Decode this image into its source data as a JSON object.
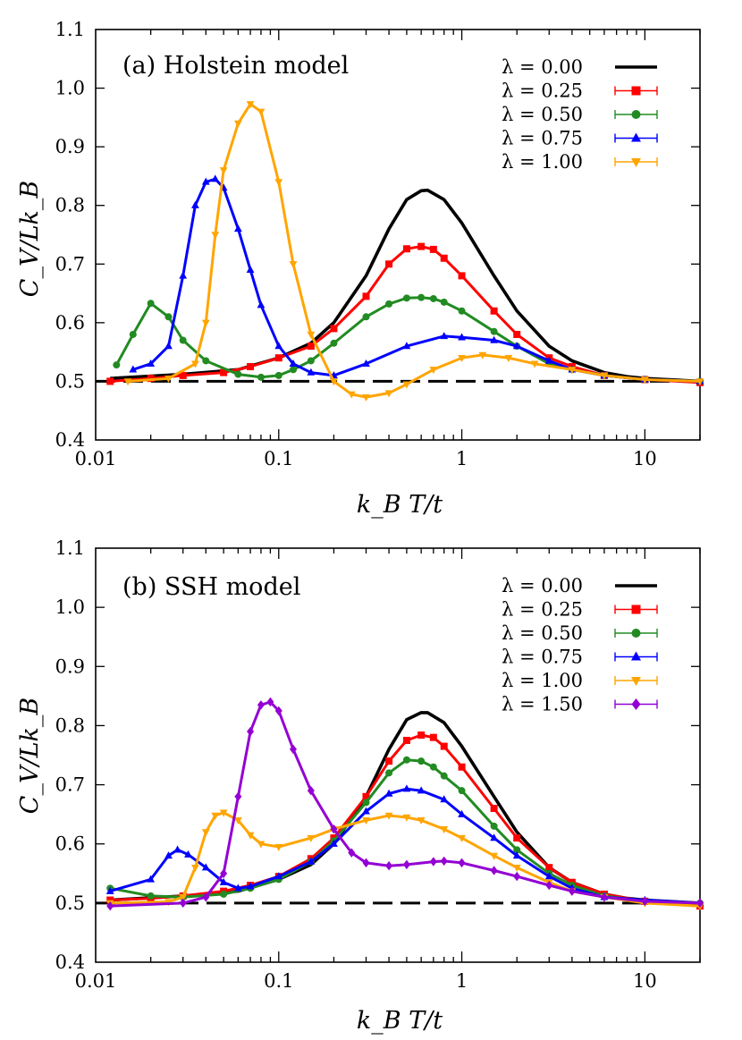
{
  "chart_data": [
    {
      "type": "line",
      "title": "(a) Holstein model",
      "xlabel": "k_B T/t",
      "ylabel": "C_V/Lk_B",
      "xscale": "log",
      "xlim": [
        0.01,
        20
      ],
      "ylim": [
        0.4,
        1.1
      ],
      "x_ticks": [
        0.01,
        0.1,
        1,
        10
      ],
      "x_tick_labels": [
        "0.01",
        "0.1",
        "1",
        "10"
      ],
      "y_ticks": [
        0.4,
        0.5,
        0.6,
        0.7,
        0.8,
        0.9,
        1.0,
        1.1
      ],
      "y_tick_labels": [
        "0.4",
        "0.5",
        "0.6",
        "0.7",
        "0.8",
        "0.9",
        "1.0",
        "1.1"
      ],
      "reference_line": {
        "y": 0.5,
        "style": "dashed",
        "color": "#000000"
      },
      "legend_position": "top-right",
      "series": [
        {
          "name": "λ = 0.00",
          "color": "#000000",
          "marker": "none",
          "x": [
            0.012,
            0.03,
            0.06,
            0.1,
            0.15,
            0.2,
            0.3,
            0.4,
            0.5,
            0.6,
            0.65,
            0.8,
            1.0,
            1.5,
            2,
            3,
            4,
            6,
            8,
            10,
            20
          ],
          "y": [
            0.505,
            0.512,
            0.52,
            0.54,
            0.565,
            0.6,
            0.68,
            0.76,
            0.81,
            0.825,
            0.826,
            0.81,
            0.77,
            0.68,
            0.62,
            0.56,
            0.535,
            0.515,
            0.508,
            0.505,
            0.5
          ]
        },
        {
          "name": "λ = 0.25",
          "color": "#ff0000",
          "marker": "square",
          "x": [
            0.012,
            0.02,
            0.03,
            0.05,
            0.07,
            0.1,
            0.15,
            0.2,
            0.3,
            0.4,
            0.5,
            0.6,
            0.7,
            0.8,
            1.0,
            1.5,
            2,
            3,
            4,
            6,
            10,
            20
          ],
          "y": [
            0.5,
            0.505,
            0.51,
            0.515,
            0.525,
            0.54,
            0.56,
            0.59,
            0.645,
            0.7,
            0.726,
            0.73,
            0.725,
            0.71,
            0.68,
            0.62,
            0.58,
            0.54,
            0.525,
            0.51,
            0.503,
            0.498
          ]
        },
        {
          "name": "λ = 0.50",
          "color": "#228b22",
          "marker": "circle",
          "x": [
            0.013,
            0.016,
            0.02,
            0.025,
            0.03,
            0.04,
            0.06,
            0.08,
            0.1,
            0.12,
            0.15,
            0.2,
            0.3,
            0.4,
            0.5,
            0.6,
            0.7,
            0.8,
            1.0,
            1.5,
            2,
            3,
            4,
            6,
            10,
            20
          ],
          "y": [
            0.528,
            0.58,
            0.633,
            0.61,
            0.57,
            0.535,
            0.512,
            0.507,
            0.51,
            0.52,
            0.535,
            0.565,
            0.61,
            0.632,
            0.642,
            0.643,
            0.641,
            0.635,
            0.62,
            0.585,
            0.56,
            0.53,
            0.52,
            0.51,
            0.503,
            0.5
          ]
        },
        {
          "name": "λ = 0.75",
          "color": "#0000ff",
          "marker": "triangle-up",
          "x": [
            0.016,
            0.02,
            0.025,
            0.03,
            0.035,
            0.04,
            0.045,
            0.05,
            0.06,
            0.07,
            0.08,
            0.1,
            0.12,
            0.15,
            0.2,
            0.3,
            0.5,
            0.8,
            1.0,
            1.5,
            2,
            3,
            4,
            6,
            10,
            20
          ],
          "y": [
            0.52,
            0.53,
            0.56,
            0.68,
            0.8,
            0.84,
            0.845,
            0.83,
            0.76,
            0.69,
            0.63,
            0.56,
            0.53,
            0.515,
            0.51,
            0.53,
            0.56,
            0.577,
            0.575,
            0.57,
            0.56,
            0.535,
            0.52,
            0.51,
            0.503,
            0.5
          ]
        },
        {
          "name": "λ = 1.00",
          "color": "#ffa500",
          "marker": "triangle-down",
          "x": [
            0.015,
            0.025,
            0.035,
            0.04,
            0.045,
            0.05,
            0.06,
            0.07,
            0.08,
            0.1,
            0.12,
            0.15,
            0.2,
            0.25,
            0.3,
            0.4,
            0.5,
            0.7,
            1.0,
            1.3,
            1.8,
            2.5,
            4,
            6,
            10,
            20
          ],
          "y": [
            0.5,
            0.505,
            0.53,
            0.6,
            0.75,
            0.86,
            0.94,
            0.973,
            0.96,
            0.84,
            0.7,
            0.58,
            0.5,
            0.478,
            0.473,
            0.48,
            0.495,
            0.52,
            0.54,
            0.545,
            0.54,
            0.53,
            0.52,
            0.51,
            0.503,
            0.5
          ]
        }
      ]
    },
    {
      "type": "line",
      "title": "(b) SSH model",
      "xlabel": "k_B T/t",
      "ylabel": "C_V/Lk_B",
      "xscale": "log",
      "xlim": [
        0.01,
        20
      ],
      "ylim": [
        0.4,
        1.1
      ],
      "x_ticks": [
        0.01,
        0.1,
        1,
        10
      ],
      "x_tick_labels": [
        "0.01",
        "0.1",
        "1",
        "10"
      ],
      "y_ticks": [
        0.4,
        0.5,
        0.6,
        0.7,
        0.8,
        0.9,
        1.0,
        1.1
      ],
      "y_tick_labels": [
        "0.4",
        "0.5",
        "0.6",
        "0.7",
        "0.8",
        "0.9",
        "1.0",
        "1.1"
      ],
      "reference_line": {
        "y": 0.5,
        "style": "dashed",
        "color": "#000000"
      },
      "legend_position": "top-right",
      "series": [
        {
          "name": "λ = 0.00",
          "color": "#000000",
          "marker": "none",
          "x": [
            0.012,
            0.03,
            0.06,
            0.1,
            0.15,
            0.2,
            0.3,
            0.4,
            0.5,
            0.6,
            0.65,
            0.8,
            1.0,
            1.5,
            2,
            3,
            4,
            6,
            8,
            10,
            20
          ],
          "y": [
            0.505,
            0.512,
            0.52,
            0.54,
            0.565,
            0.6,
            0.68,
            0.76,
            0.81,
            0.822,
            0.822,
            0.805,
            0.765,
            0.68,
            0.62,
            0.56,
            0.535,
            0.515,
            0.508,
            0.505,
            0.5
          ]
        },
        {
          "name": "λ = 0.25",
          "color": "#ff0000",
          "marker": "square",
          "x": [
            0.012,
            0.02,
            0.03,
            0.05,
            0.07,
            0.1,
            0.15,
            0.2,
            0.3,
            0.4,
            0.5,
            0.6,
            0.7,
            0.8,
            1.0,
            1.5,
            2,
            3,
            4,
            6,
            10,
            20
          ],
          "y": [
            0.505,
            0.508,
            0.512,
            0.52,
            0.53,
            0.545,
            0.575,
            0.61,
            0.68,
            0.74,
            0.775,
            0.784,
            0.78,
            0.765,
            0.73,
            0.66,
            0.61,
            0.56,
            0.535,
            0.515,
            0.503,
            0.495
          ]
        },
        {
          "name": "λ = 0.50",
          "color": "#228b22",
          "marker": "circle",
          "x": [
            0.012,
            0.02,
            0.03,
            0.05,
            0.07,
            0.1,
            0.15,
            0.2,
            0.3,
            0.4,
            0.5,
            0.6,
            0.7,
            0.8,
            1.0,
            1.5,
            2,
            3,
            4,
            6,
            10,
            20
          ],
          "y": [
            0.525,
            0.512,
            0.51,
            0.515,
            0.525,
            0.54,
            0.57,
            0.605,
            0.67,
            0.72,
            0.742,
            0.74,
            0.73,
            0.715,
            0.69,
            0.63,
            0.59,
            0.55,
            0.53,
            0.512,
            0.503,
            0.5
          ]
        },
        {
          "name": "λ = 0.75",
          "color": "#0000ff",
          "marker": "triangle-up",
          "x": [
            0.012,
            0.02,
            0.025,
            0.028,
            0.032,
            0.04,
            0.05,
            0.06,
            0.07,
            0.1,
            0.15,
            0.2,
            0.3,
            0.4,
            0.5,
            0.6,
            0.8,
            1.0,
            1.5,
            2,
            3,
            4,
            6,
            10,
            20
          ],
          "y": [
            0.52,
            0.54,
            0.58,
            0.59,
            0.582,
            0.56,
            0.535,
            0.525,
            0.528,
            0.545,
            0.57,
            0.6,
            0.655,
            0.685,
            0.693,
            0.69,
            0.675,
            0.65,
            0.61,
            0.58,
            0.545,
            0.525,
            0.51,
            0.505,
            0.5
          ]
        },
        {
          "name": "λ = 1.00",
          "color": "#ffa500",
          "marker": "triangle-down",
          "x": [
            0.012,
            0.025,
            0.03,
            0.035,
            0.04,
            0.045,
            0.05,
            0.06,
            0.07,
            0.08,
            0.1,
            0.15,
            0.2,
            0.3,
            0.4,
            0.5,
            0.6,
            0.8,
            1.0,
            1.5,
            2,
            3,
            4,
            6,
            10,
            20
          ],
          "y": [
            0.5,
            0.502,
            0.51,
            0.56,
            0.62,
            0.648,
            0.653,
            0.64,
            0.615,
            0.6,
            0.595,
            0.61,
            0.625,
            0.64,
            0.648,
            0.645,
            0.64,
            0.625,
            0.61,
            0.58,
            0.56,
            0.535,
            0.52,
            0.51,
            0.5,
            0.495
          ]
        },
        {
          "name": "λ = 1.50",
          "color": "#9400d3",
          "marker": "diamond",
          "x": [
            0.012,
            0.03,
            0.04,
            0.05,
            0.06,
            0.07,
            0.08,
            0.09,
            0.1,
            0.12,
            0.15,
            0.2,
            0.25,
            0.3,
            0.4,
            0.5,
            0.7,
            0.8,
            1.0,
            1.5,
            2,
            3,
            4,
            6,
            10,
            20
          ],
          "y": [
            0.495,
            0.5,
            0.51,
            0.55,
            0.68,
            0.79,
            0.835,
            0.84,
            0.825,
            0.76,
            0.69,
            0.625,
            0.585,
            0.568,
            0.563,
            0.565,
            0.57,
            0.571,
            0.568,
            0.555,
            0.545,
            0.53,
            0.52,
            0.51,
            0.503,
            0.5
          ]
        }
      ]
    }
  ]
}
